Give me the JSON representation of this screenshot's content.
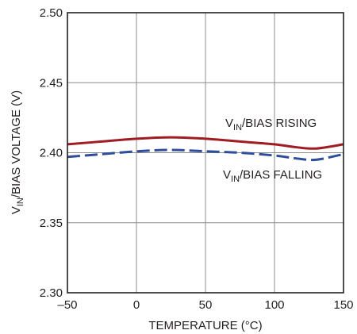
{
  "chart_data": {
    "type": "line",
    "xlabel": "TEMPERATURE (°C)",
    "ylabel": {
      "prefix": "V",
      "sub": "IN",
      "suffix": "/BIAS VOLTAGE (V)"
    },
    "xlim": [
      -50,
      150
    ],
    "ylim": [
      2.3,
      2.5
    ],
    "xticks": [
      "–50",
      "0",
      "50",
      "100",
      "150"
    ],
    "xtick_values": [
      -50,
      0,
      50,
      100,
      150
    ],
    "yticks": [
      "2.30",
      "2.35",
      "2.40",
      "2.45",
      "2.50"
    ],
    "ytick_values": [
      2.3,
      2.35,
      2.4,
      2.45,
      2.5
    ],
    "grid": true,
    "series": [
      {
        "label_prefix": "V",
        "label_sub": "IN",
        "label_suffix": "/BIAS RISING",
        "color": "#a01c24",
        "style": "solid",
        "x": [
          -50,
          -25,
          0,
          25,
          50,
          75,
          100,
          115,
          130,
          150
        ],
        "y": [
          2.406,
          2.408,
          2.41,
          2.411,
          2.41,
          2.408,
          2.406,
          2.404,
          2.403,
          2.406
        ]
      },
      {
        "label_prefix": "V",
        "label_sub": "IN",
        "label_suffix": "/BIAS FALLING",
        "color": "#2e4d9b",
        "style": "dashed",
        "x": [
          -50,
          -25,
          0,
          25,
          50,
          75,
          100,
          115,
          130,
          150
        ],
        "y": [
          2.397,
          2.399,
          2.401,
          2.402,
          2.401,
          2.4,
          2.398,
          2.396,
          2.395,
          2.399
        ]
      }
    ]
  }
}
